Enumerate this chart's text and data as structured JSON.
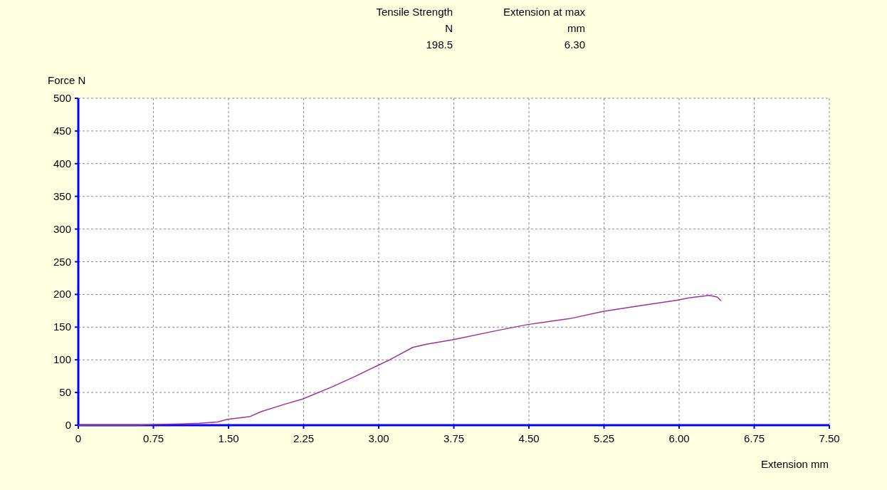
{
  "chart_data": {
    "type": "line",
    "xlabel": "Extension mm",
    "ylabel": "Force N",
    "annotations": [
      "Tensile Strength",
      "Extension at max",
      "N",
      "mm",
      "198.5",
      "6.30"
    ],
    "series": [
      {
        "color": "#a030a0",
        "x": [
          0,
          0.6,
          0.75,
          1.02,
          1.21,
          1.39,
          1.49,
          1.71,
          1.83,
          2.06,
          2.24,
          2.54,
          2.77,
          2.89,
          3.0,
          3.11,
          3.34,
          3.48,
          3.75,
          4.19,
          4.49,
          4.91,
          5.24,
          5.62,
          5.97,
          6.11,
          6.3,
          6.38,
          6.42
        ],
        "values": [
          0,
          0,
          1,
          2,
          3,
          5,
          9,
          13,
          21,
          32,
          40,
          59,
          75,
          84,
          92,
          100,
          119,
          124,
          131,
          145,
          154,
          163,
          174,
          183,
          191,
          195,
          198.5,
          196,
          190
        ]
      }
    ],
    "xlim": [
      0,
      7.5
    ],
    "ylim": [
      0,
      500
    ],
    "xticks": [
      0,
      {
        "value": 0.75,
        "label": "0.75"
      },
      {
        "value": 1.5,
        "label": "1.50"
      },
      {
        "value": 2.25,
        "label": "2.25"
      },
      {
        "value": 3,
        "label": "3.00"
      },
      {
        "value": 3.75,
        "label": "3.75"
      },
      {
        "value": 4.5,
        "label": "4.50"
      },
      {
        "value": 5.25,
        "label": "5.25"
      },
      {
        "value": 6,
        "label": "6.00"
      },
      {
        "value": 6.75,
        "label": "6.75"
      },
      {
        "value": 7.5,
        "label": "7.50"
      }
    ],
    "yticks": [
      0,
      50,
      100,
      150,
      200,
      250,
      300,
      350,
      400,
      450,
      500
    ],
    "grid": true,
    "line_style": "solid",
    "marker": "none"
  }
}
